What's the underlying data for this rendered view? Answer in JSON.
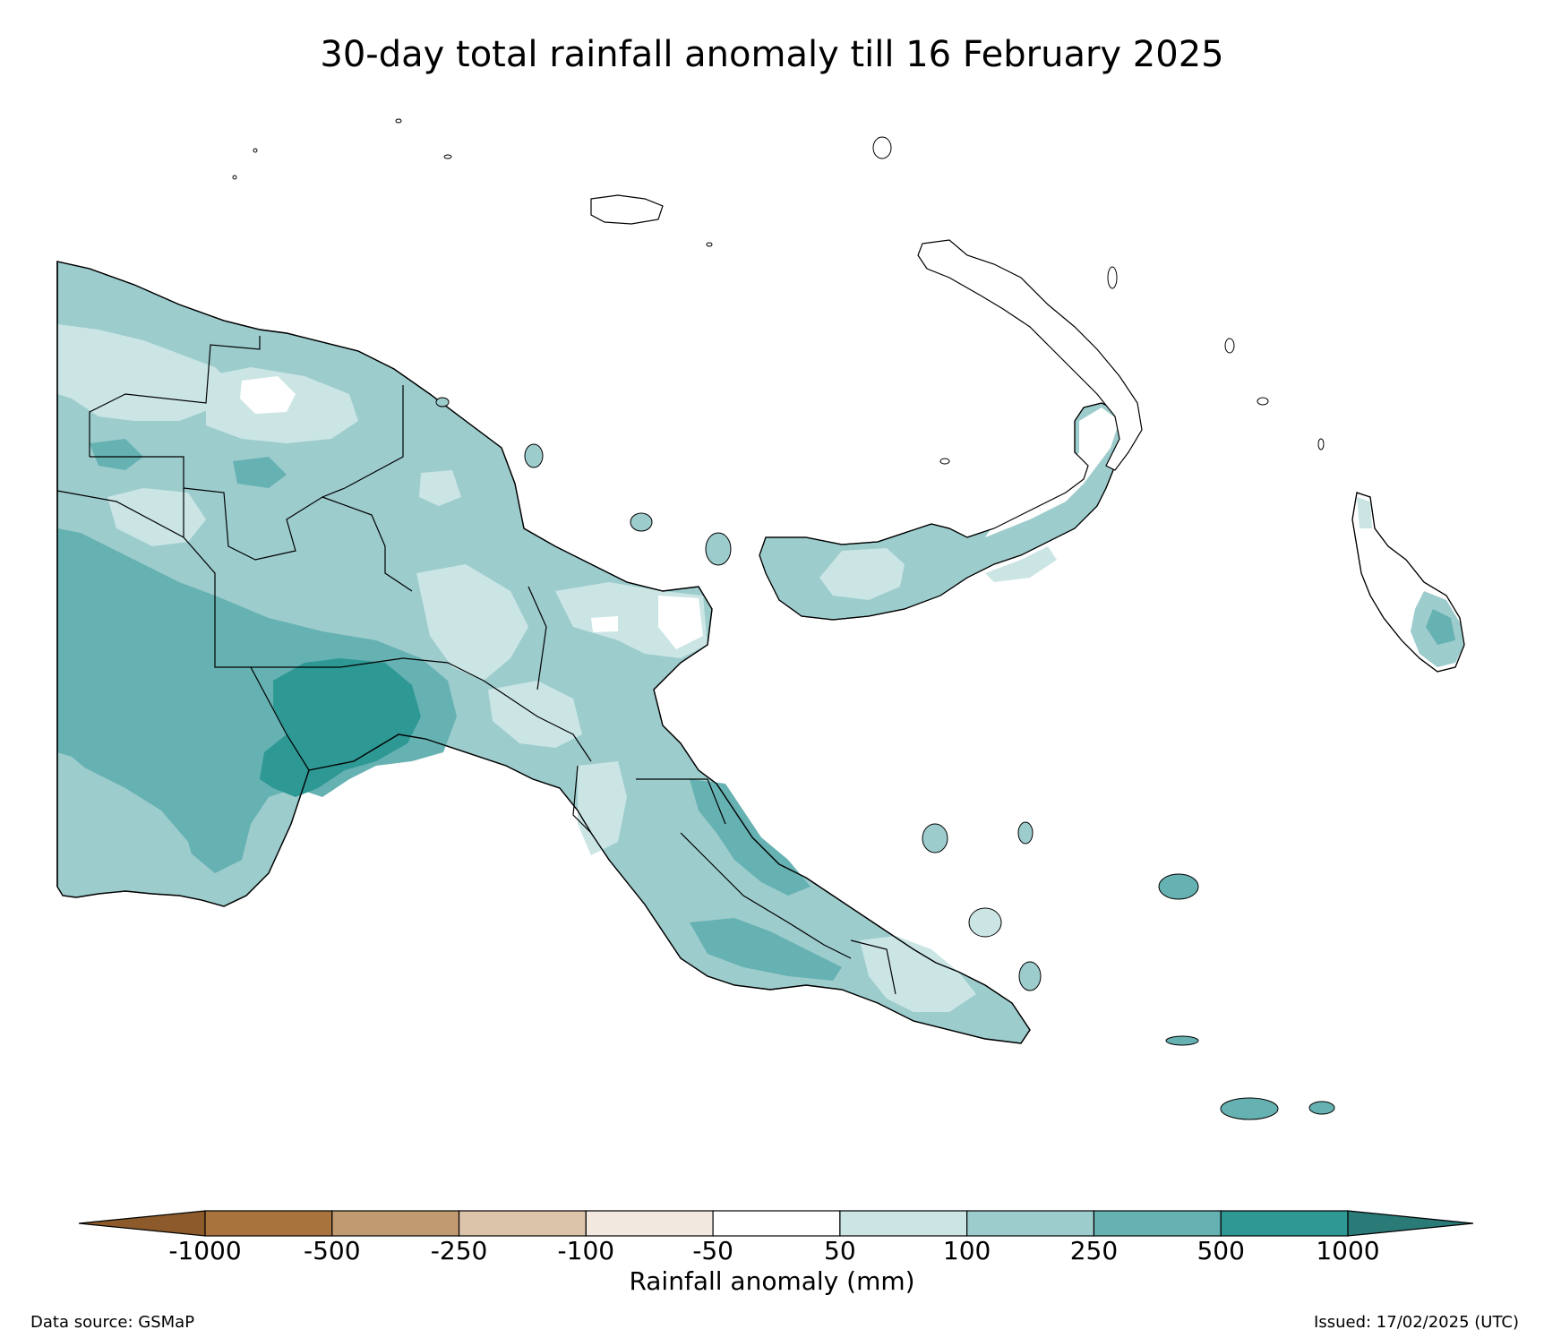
{
  "title": "30-day total rainfall anomaly till 16 February 2025",
  "colorbar": {
    "label": "Rainfall anomaly (mm)",
    "ticks": [
      "-1000",
      "-500",
      "-250",
      "-100",
      "-50",
      "50",
      "100",
      "250",
      "500",
      "1000"
    ],
    "under_color": "#8c5a2b",
    "over_color": "#2a7a78",
    "bins": [
      {
        "from": -1000,
        "to": -500,
        "color": "#a8733d"
      },
      {
        "from": -500,
        "to": -250,
        "color": "#c09a70"
      },
      {
        "from": -250,
        "to": -100,
        "color": "#dcc4ab"
      },
      {
        "from": -100,
        "to": -50,
        "color": "#f2e8df"
      },
      {
        "from": -50,
        "to": 50,
        "color": "#ffffff"
      },
      {
        "from": 50,
        "to": 100,
        "color": "#cbe5e5"
      },
      {
        "from": 100,
        "to": 250,
        "color": "#9dcccd"
      },
      {
        "from": 250,
        "to": 500,
        "color": "#66b1b2"
      },
      {
        "from": 500,
        "to": 1000,
        "color": "#2e9894"
      }
    ]
  },
  "footer": {
    "source": "Data source: GSMaP",
    "issued": "Issued: 17/02/2025 (UTC)"
  }
}
